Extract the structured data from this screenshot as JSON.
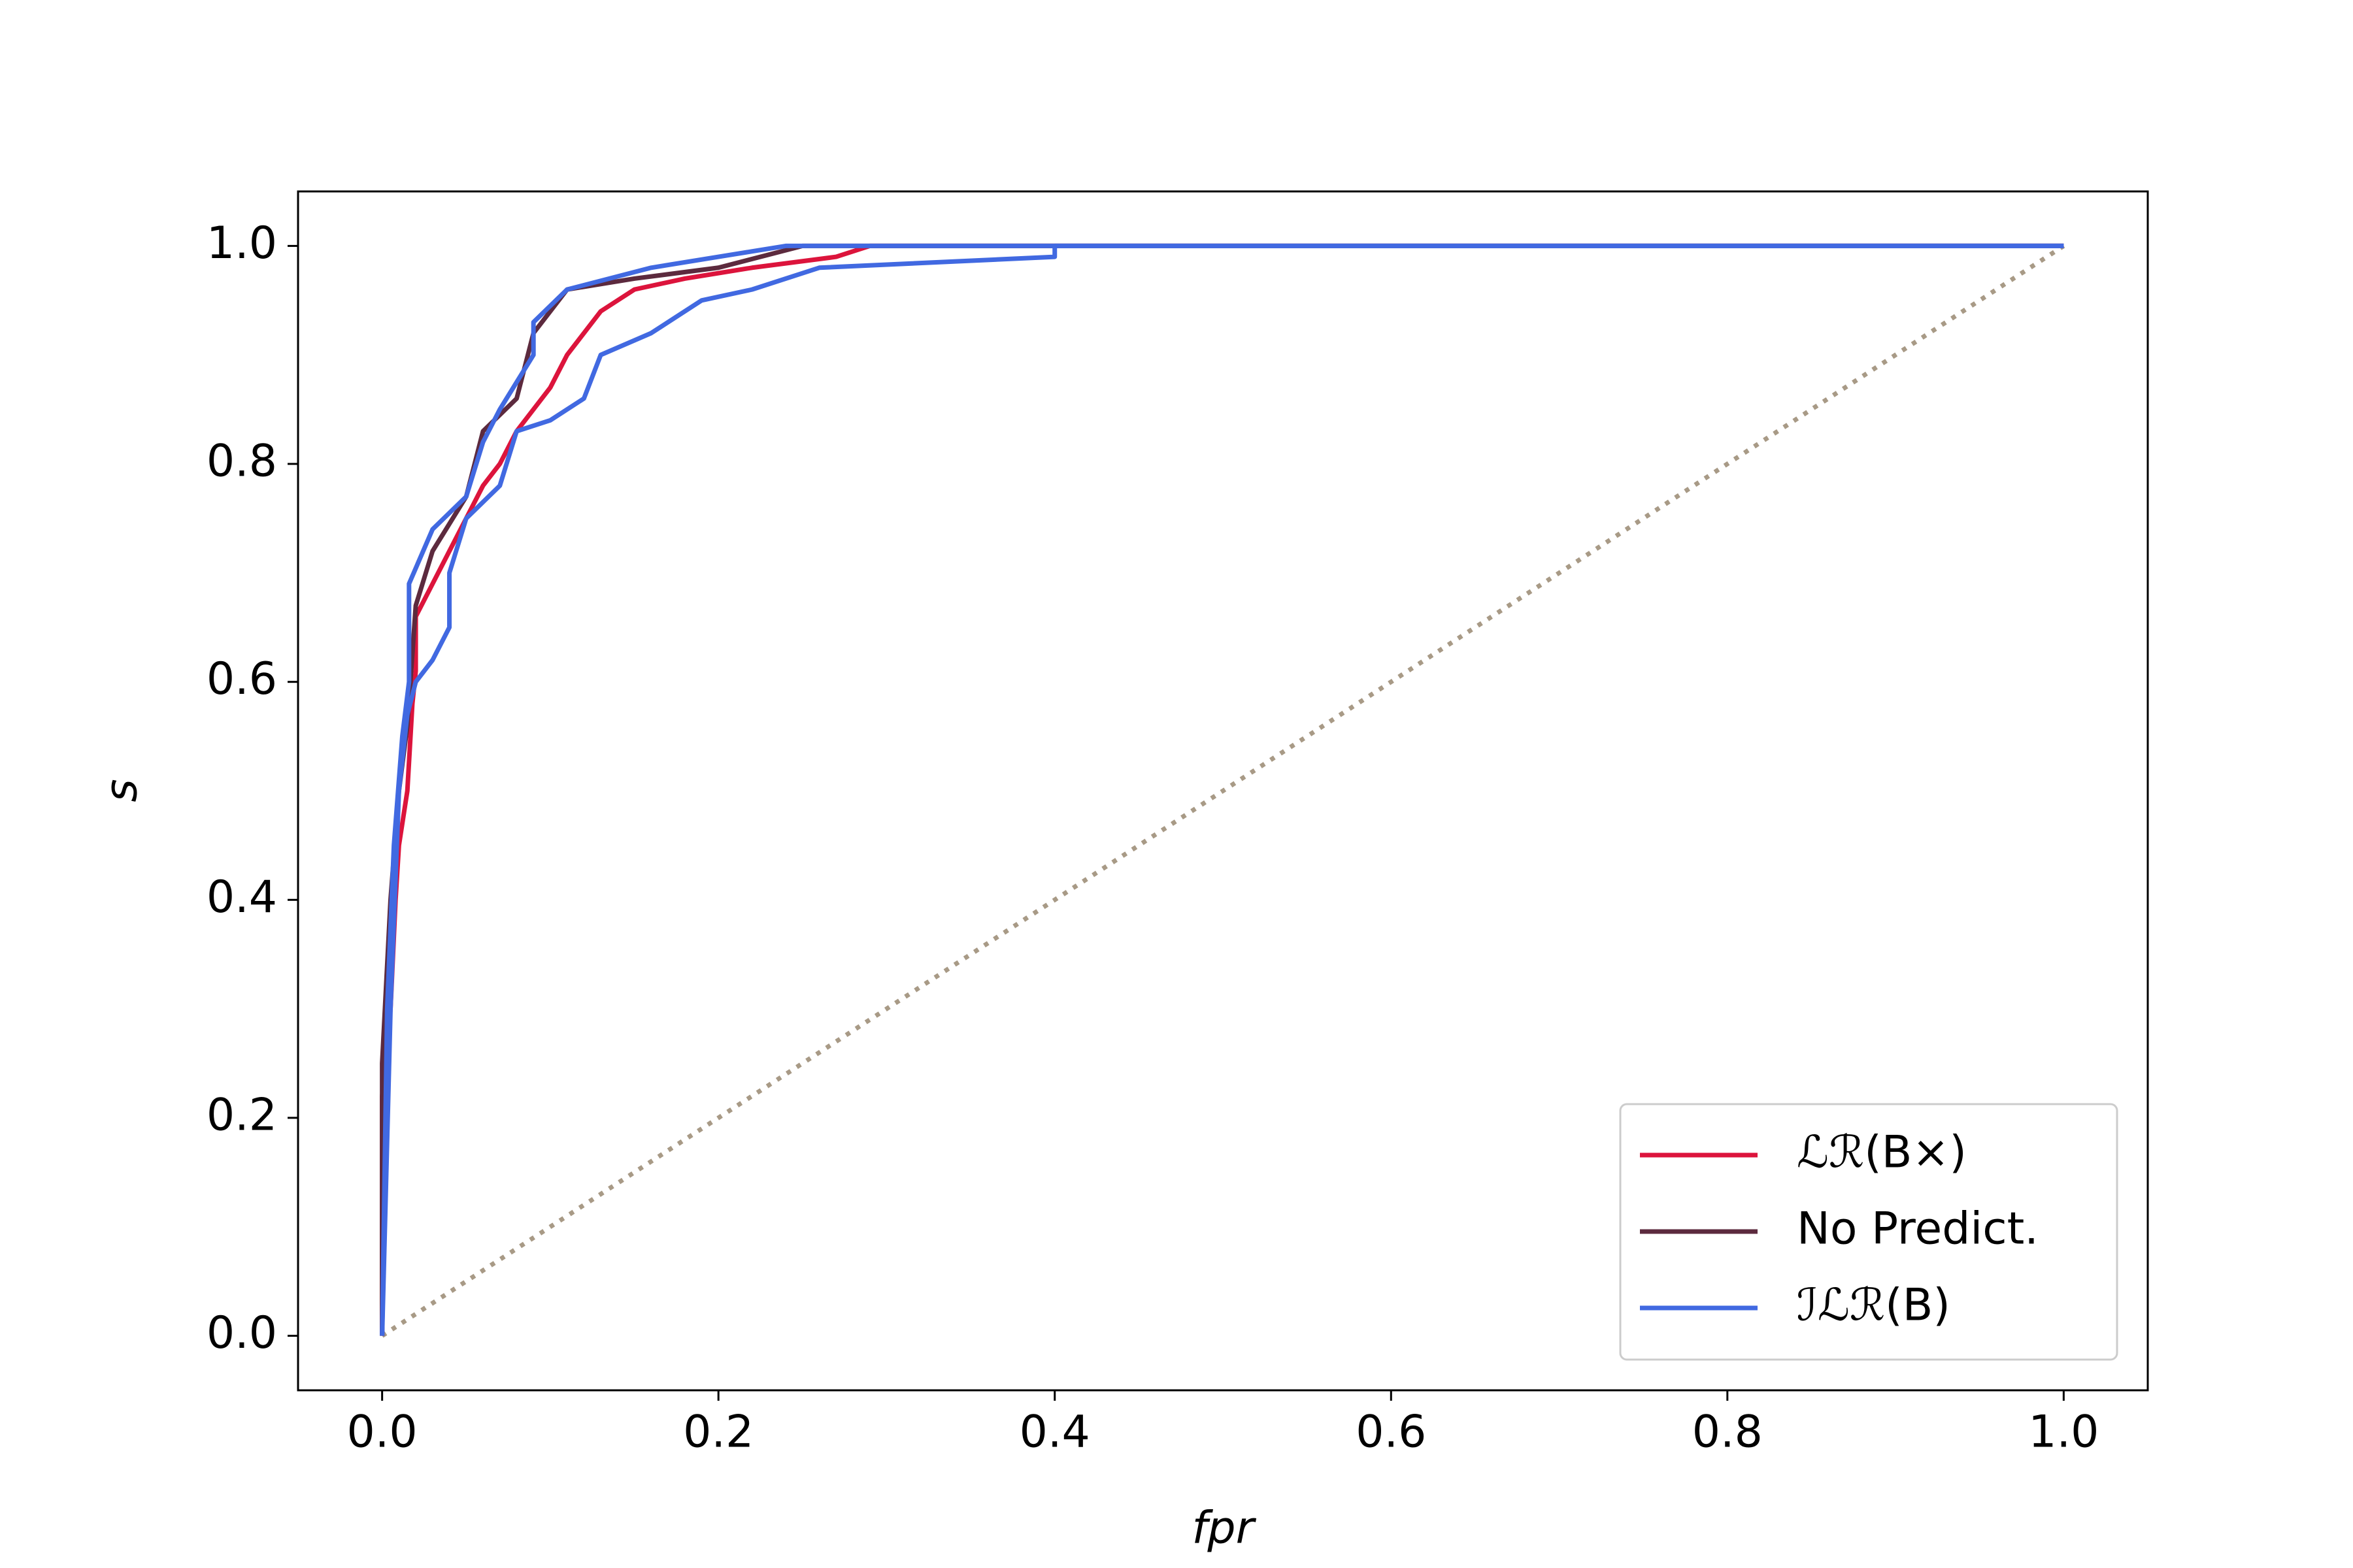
{
  "chart_data": {
    "type": "line",
    "xlabel": "fpr",
    "ylabel": "s",
    "xlim": [
      -0.05,
      1.05
    ],
    "ylim": [
      -0.05,
      1.05
    ],
    "xticks": [
      {
        "value": 0,
        "label": "0.0"
      },
      0.2,
      0.4,
      0.6,
      0.8,
      {
        "value": 1,
        "label": "1.0"
      }
    ],
    "yticks": [
      {
        "value": 0,
        "label": "0.0"
      },
      0.2,
      0.4,
      0.6,
      0.8,
      {
        "value": 1,
        "label": "1.0"
      }
    ],
    "legend": "lower right",
    "series": [
      {
        "color": "#a89a86",
        "style": "dotted",
        "x": [
          0,
          1
        ],
        "values": [
          0,
          1
        ]
      },
      {
        "name": "ℒℛ(B×)",
        "color": "#dc143c",
        "x": [
          0,
          0,
          0.005,
          0.008,
          0.01,
          0.015,
          0.018,
          0.02,
          0.02,
          0.03,
          0.04,
          0.05,
          0.06,
          0.07,
          0.08,
          0.09,
          0.1,
          0.11,
          0.12,
          0.13,
          0.15,
          0.18,
          0.22,
          0.27,
          0.29,
          1
        ],
        "values": [
          0,
          0.22,
          0.3,
          0.4,
          0.45,
          0.5,
          0.58,
          0.61,
          0.66,
          0.69,
          0.72,
          0.75,
          0.78,
          0.8,
          0.83,
          0.85,
          0.87,
          0.9,
          0.92,
          0.94,
          0.96,
          0.97,
          0.98,
          0.99,
          1,
          1
        ]
      },
      {
        "name": "No Predict.",
        "color": "#5c2a3e",
        "x": [
          0,
          0,
          0.005,
          0.01,
          0.015,
          0.02,
          0.03,
          0.05,
          0.06,
          0.08,
          0.09,
          0.11,
          0.15,
          0.2,
          0.25,
          1
        ],
        "values": [
          0,
          0.25,
          0.4,
          0.5,
          0.56,
          0.67,
          0.72,
          0.77,
          0.83,
          0.86,
          0.92,
          0.96,
          0.97,
          0.98,
          1,
          1
        ]
      },
      {
        "color": "#4169e1",
        "x": [
          0,
          0.005,
          0.01,
          0.015,
          0.02,
          0.03,
          0.04,
          0.04,
          0.05,
          0.07,
          0.08,
          0.1,
          0.12,
          0.13,
          0.16,
          0.19,
          0.22,
          0.26,
          0.4,
          0.4,
          1
        ],
        "values": [
          0,
          0.3,
          0.5,
          0.57,
          0.6,
          0.62,
          0.65,
          0.7,
          0.75,
          0.78,
          0.83,
          0.84,
          0.86,
          0.9,
          0.92,
          0.95,
          0.96,
          0.98,
          0.99,
          1,
          1
        ]
      },
      {
        "name": "ℐℒℛ(B)",
        "color": "#4169e1",
        "x": [
          0,
          0.003,
          0.007,
          0.012,
          0.016,
          0.016,
          0.03,
          0.05,
          0.06,
          0.07,
          0.09,
          0.09,
          0.11,
          0.16,
          0.2,
          0.24,
          1
        ],
        "values": [
          0,
          0.3,
          0.45,
          0.55,
          0.6,
          0.69,
          0.74,
          0.77,
          0.82,
          0.85,
          0.9,
          0.93,
          0.96,
          0.98,
          0.99,
          1,
          1
        ]
      }
    ]
  }
}
